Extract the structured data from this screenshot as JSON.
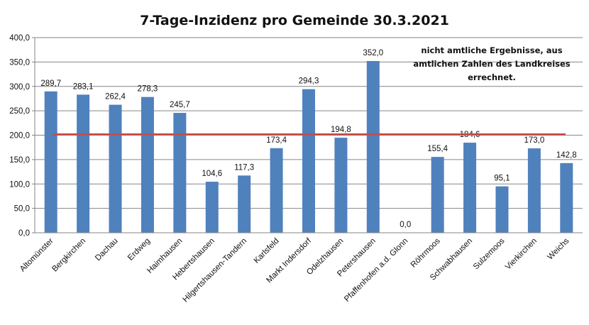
{
  "chart_data": {
    "type": "bar",
    "title": "7-Tage-Inzidenz pro Gemeinde 30.3.2021",
    "annotation": [
      "nicht amtliche Ergebnisse, aus",
      "amtlichen Zahlen des Landkreises",
      "errechnet."
    ],
    "categories": [
      "Altomünster",
      "Bergkirchen",
      "Dachau",
      "Erdweg",
      "Haimhausen",
      "Hebertshausen",
      "Hilgertshausen-Tandern",
      "Karlsfeld",
      "Markt Indersdorf",
      "Odelzhausen",
      "Petershausen",
      "Pfaffenhofen a.d. Glonn",
      "Röhrmoos",
      "Schwabhausen",
      "Sulzemoos",
      "Vierkirchen",
      "Weichs"
    ],
    "values": [
      289.7,
      283.1,
      262.4,
      278.3,
      245.7,
      104.6,
      117.3,
      173.4,
      294.3,
      194.8,
      352.0,
      0.0,
      155.4,
      184.6,
      95.1,
      173.0,
      142.8
    ],
    "value_labels": [
      "289,7",
      "283,1",
      "262,4",
      "278,3",
      "245,7",
      "104,6",
      "117,3",
      "173,4",
      "294,3",
      "194,8",
      "352,0",
      "0,0",
      "155,4",
      "184,6",
      "95,1",
      "173,0",
      "142,8"
    ],
    "ylim": [
      0,
      400
    ],
    "yticks": [
      0,
      50,
      100,
      150,
      200,
      250,
      300,
      350,
      400
    ],
    "ytick_labels": [
      "0,0",
      "50,0",
      "100,0",
      "150,0",
      "200,0",
      "250,0",
      "300,0",
      "350,0",
      "400,0"
    ],
    "reference_line": {
      "value": 200
    },
    "grid": "horizontal",
    "legend": "none",
    "xlabel": "",
    "ylabel": "",
    "colors": {
      "bar": "#4F81BD",
      "reference_line": "#C0504D",
      "grid": "#868686",
      "axis": "#868686"
    }
  }
}
